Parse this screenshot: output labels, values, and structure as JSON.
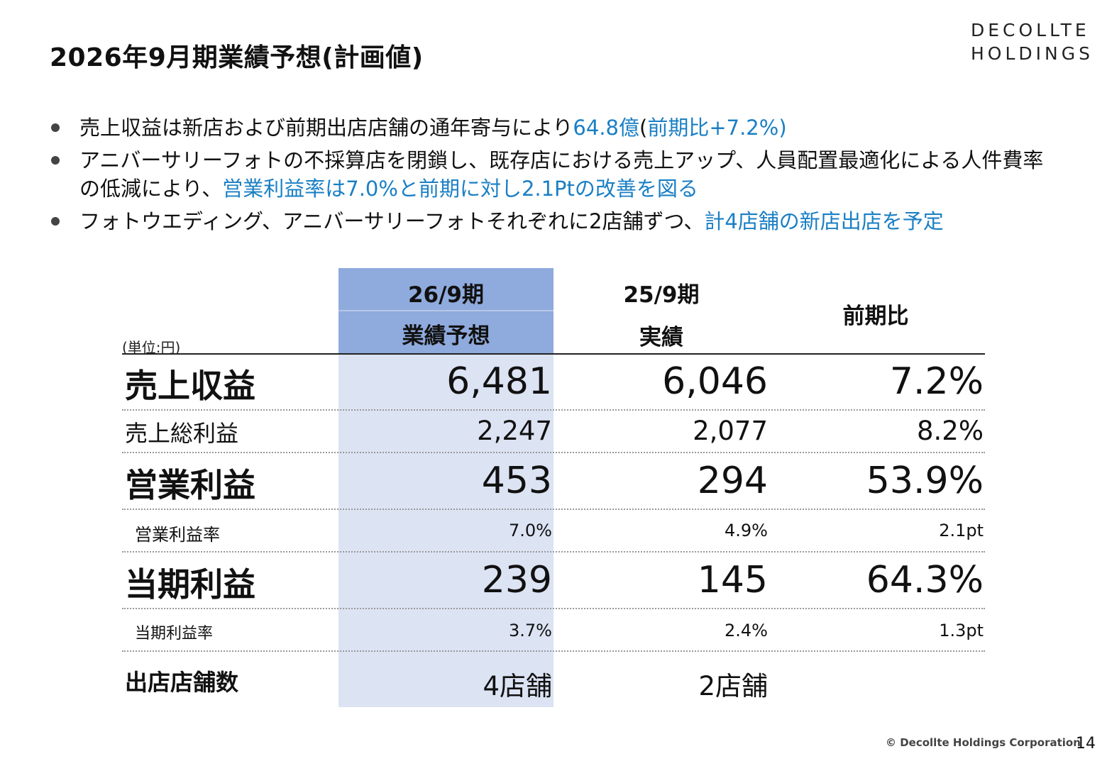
{
  "title": "2026年9月期業績予想(計画値)",
  "logo": {
    "line1": "DECOLLTE",
    "line2": "HOLDINGS"
  },
  "bullets": [
    {
      "parts": [
        {
          "text": "売上収益は新店および前期出店店舗の通年寄与により",
          "hl": false
        },
        {
          "text": "64.8億",
          "hl": true
        },
        {
          "text": "(",
          "hl": false
        },
        {
          "text": "前期比+7.2%",
          "hl": true
        },
        {
          "text": ")",
          "hl": true
        }
      ]
    },
    {
      "parts": [
        {
          "text": "アニバーサリーフォトの不採算店を閉鎖し、既存店における売上アップ、人員配置最適化による人件費率の低減により、",
          "hl": false
        },
        {
          "text": "営業利益率は7.0%と前期に対し2.1Ptの改善を図る",
          "hl": true
        }
      ]
    },
    {
      "parts": [
        {
          "text": "フォトウエディング、アニバーサリーフォトそれぞれに2店舗ずつ、",
          "hl": false
        },
        {
          "text": "計4店舗の新店出店を予定",
          "hl": true
        }
      ]
    }
  ],
  "table": {
    "unit": "(単位:円)",
    "col1": {
      "line1": "26/9期",
      "line2": "業績予想"
    },
    "col2": {
      "line1": "25/9期",
      "line2": "実績"
    },
    "col3": "前期比",
    "rows": [
      {
        "label": "売上収益",
        "v1": "6,481",
        "v2": "6,046",
        "v3": "7.2%"
      },
      {
        "label": "売上総利益",
        "v1": "2,247",
        "v2": "2,077",
        "v3": "8.2%"
      },
      {
        "label": "営業利益",
        "v1": "453",
        "v2": "294",
        "v3": "53.9%"
      },
      {
        "label": "営業利益率",
        "v1": "7.0%",
        "v2": "4.9%",
        "v3": "2.1pt"
      },
      {
        "label": "当期利益",
        "v1": "239",
        "v2": "145",
        "v3": "64.3%"
      },
      {
        "label": "当期利益率",
        "v1": "3.7%",
        "v2": "2.4%",
        "v3": "1.3pt"
      },
      {
        "label": "出店店舗数",
        "v1": "4店舗",
        "v2": "2店舗",
        "v3": ""
      }
    ]
  },
  "footer": "© Decollte Holdings Corporation",
  "page_number": "14"
}
